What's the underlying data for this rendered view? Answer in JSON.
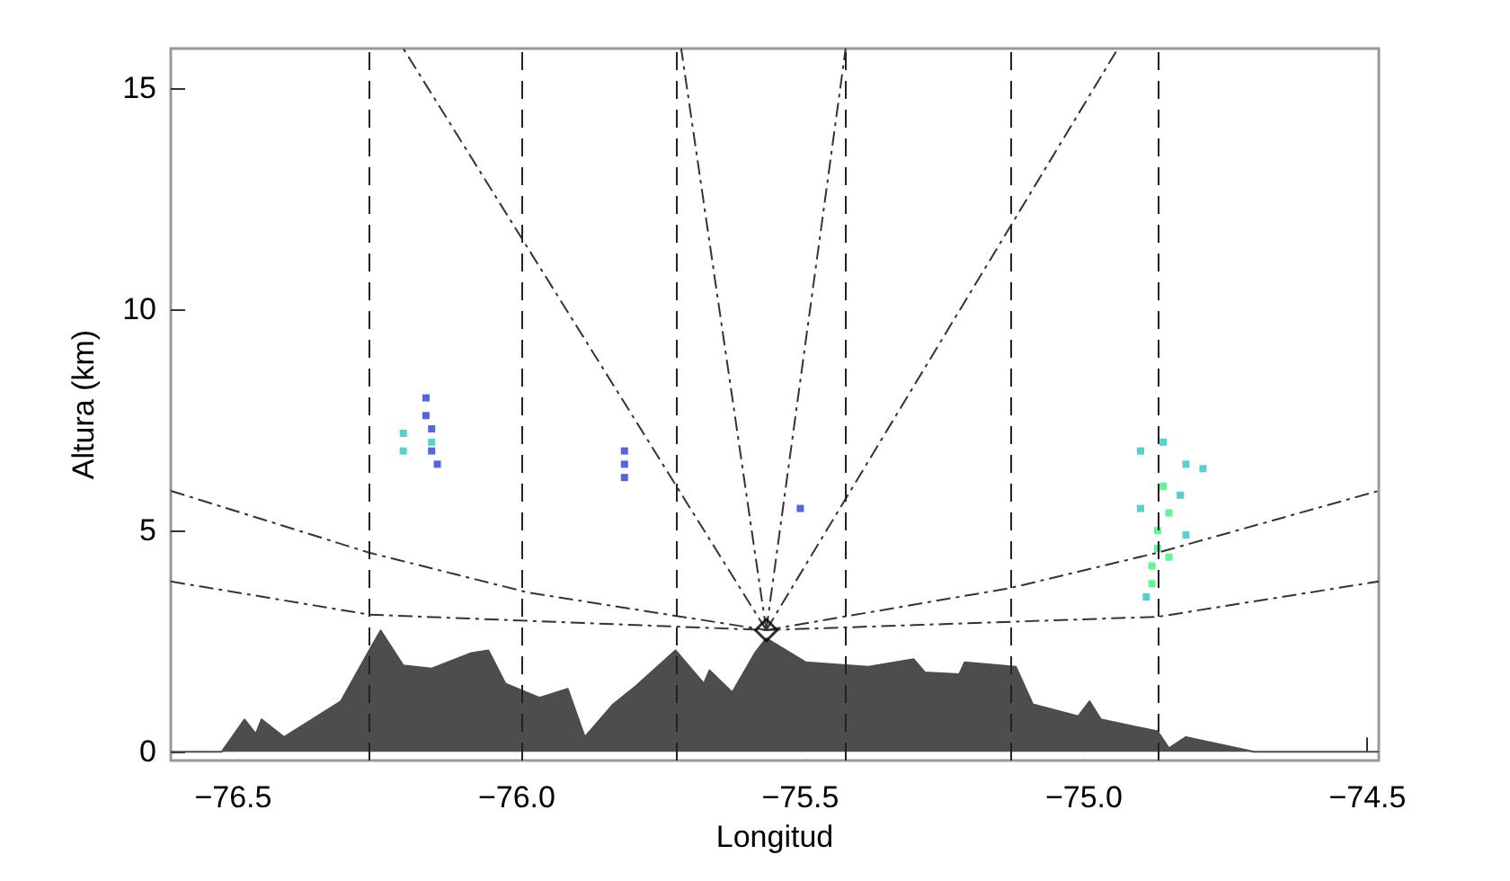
{
  "chart_data": {
    "type": "line",
    "xlabel": "Longitud",
    "ylabel": "Altura (km)",
    "xlim": [
      -76.61,
      -74.48
    ],
    "ylim": [
      -0.2,
      15.9
    ],
    "xticks": [
      {
        "value": -76.5,
        "label": "−76.5"
      },
      {
        "value": -76,
        "label": "−76.0"
      },
      {
        "value": -75.5,
        "label": "−75.5"
      },
      {
        "value": -75,
        "label": "−75.0"
      },
      {
        "value": -74.5,
        "label": "−74.5"
      }
    ],
    "yticks": [
      0,
      5,
      10,
      15
    ],
    "grid": false,
    "ref_lines": [
      {
        "axis": "x",
        "value": -76.26,
        "color": "#222222",
        "line_style": "dashed"
      },
      {
        "axis": "x",
        "value": -75.99,
        "color": "#222222",
        "line_style": "dashed"
      },
      {
        "axis": "x",
        "value": -75.72,
        "color": "#222222",
        "line_style": "dashed"
      },
      {
        "axis": "x",
        "value": -75.42,
        "color": "#222222",
        "line_style": "dashed"
      },
      {
        "axis": "x",
        "value": -75.13,
        "color": "#222222",
        "line_style": "dashed"
      },
      {
        "axis": "x",
        "value": -74.87,
        "color": "#222222",
        "line_style": "dashed"
      }
    ],
    "series": [
      {
        "type": "area",
        "color": "#4d4d4d",
        "marker": "none",
        "x": [
          -76.61,
          -76.52,
          -76.48,
          -76.46,
          -76.45,
          -76.41,
          -76.31,
          -76.26,
          -76.24,
          -76.2,
          -76.15,
          -76.08,
          -76.05,
          -76.02,
          -75.96,
          -75.91,
          -75.88,
          -75.83,
          -75.79,
          -75.72,
          -75.67,
          -75.66,
          -75.62,
          -75.58,
          -75.56,
          -75.49,
          -75.38,
          -75.3,
          -75.28,
          -75.22,
          -75.21,
          -75.12,
          -75.09,
          -75.01,
          -74.99,
          -74.97,
          -74.87,
          -74.85,
          -74.82,
          -74.7,
          -74.52,
          -74.48
        ],
        "values": [
          0,
          0,
          0.73,
          0.4,
          0.73,
          0.33,
          1.14,
          2.29,
          2.74,
          1.95,
          1.88,
          2.23,
          2.29,
          1.54,
          1.22,
          1.42,
          0.33,
          1.07,
          1.48,
          2.29,
          1.54,
          1.84,
          1.34,
          2.23,
          2.56,
          2.02,
          1.92,
          2.09,
          1.79,
          1.75,
          2.02,
          1.92,
          1.07,
          0.8,
          1.14,
          0.73,
          0.46,
          0.08,
          0.33,
          0,
          0,
          0
        ]
      },
      {
        "type": "line",
        "color": "#333333",
        "marker": "none",
        "line_style": "dashed",
        "x": [
          -75.56,
          -76.2
        ],
        "values": [
          2.75,
          15.9
        ]
      },
      {
        "type": "line",
        "color": "#333333",
        "marker": "none",
        "line_style": "dashed",
        "x": [
          -75.56,
          -75.71
        ],
        "values": [
          2.75,
          15.9
        ]
      },
      {
        "type": "line",
        "color": "#333333",
        "marker": "none",
        "line_style": "dashed",
        "x": [
          -75.56,
          -75.42
        ],
        "values": [
          2.75,
          15.9
        ]
      },
      {
        "type": "line",
        "color": "#333333",
        "marker": "none",
        "line_style": "dashed",
        "x": [
          -75.56,
          -74.94
        ],
        "values": [
          2.75,
          15.9
        ]
      },
      {
        "type": "line",
        "color": "#333333",
        "marker": "none",
        "line_style": "dashed",
        "x": [
          -76.61,
          -76.26,
          -75.98,
          -75.56
        ],
        "values": [
          5.9,
          4.5,
          3.6,
          2.75
        ]
      },
      {
        "type": "line",
        "color": "#333333",
        "marker": "none",
        "line_style": "dashed",
        "x": [
          -76.61,
          -76.26,
          -75.56
        ],
        "values": [
          3.85,
          3.1,
          2.75
        ]
      },
      {
        "type": "line",
        "color": "#333333",
        "marker": "none",
        "line_style": "dashed",
        "x": [
          -75.56,
          -75.13,
          -74.87,
          -74.48
        ],
        "values": [
          2.75,
          3.7,
          4.5,
          5.9
        ]
      },
      {
        "type": "line",
        "color": "#333333",
        "marker": "none",
        "line_style": "dashed",
        "x": [
          -75.56,
          -74.87,
          -74.48
        ],
        "values": [
          2.75,
          3.05,
          3.85
        ]
      },
      {
        "type": "scatter",
        "color": "#2a3fd6",
        "marker": "square",
        "x": [
          -76.16,
          -76.16,
          -76.15,
          -76.15,
          -76.14,
          -75.81,
          -75.81,
          -75.81,
          -75.5
        ],
        "values": [
          8.0,
          7.6,
          7.3,
          6.8,
          6.5,
          6.8,
          6.5,
          6.2,
          5.5
        ]
      },
      {
        "type": "scatter",
        "color": "#2cc4c4",
        "marker": "square",
        "x": [
          -76.2,
          -76.2,
          -76.15,
          -74.9,
          -74.89,
          -74.86,
          -74.83,
          -74.82,
          -74.82,
          -74.79,
          -74.9
        ],
        "values": [
          7.2,
          6.8,
          7.0,
          6.8,
          3.5,
          7.0,
          5.8,
          6.5,
          4.9,
          6.4,
          5.5
        ]
      },
      {
        "type": "scatter",
        "color": "#3cf27a",
        "marker": "square",
        "x": [
          -74.88,
          -74.87,
          -74.86,
          -74.85,
          -74.87,
          -74.85,
          -74.88
        ],
        "values": [
          4.2,
          5.0,
          6.0,
          5.4,
          4.6,
          4.4,
          3.8
        ]
      },
      {
        "type": "scatter",
        "color": "#000000",
        "marker": "diamond",
        "x": [
          -75.56
        ],
        "values": [
          2.75
        ]
      }
    ]
  }
}
